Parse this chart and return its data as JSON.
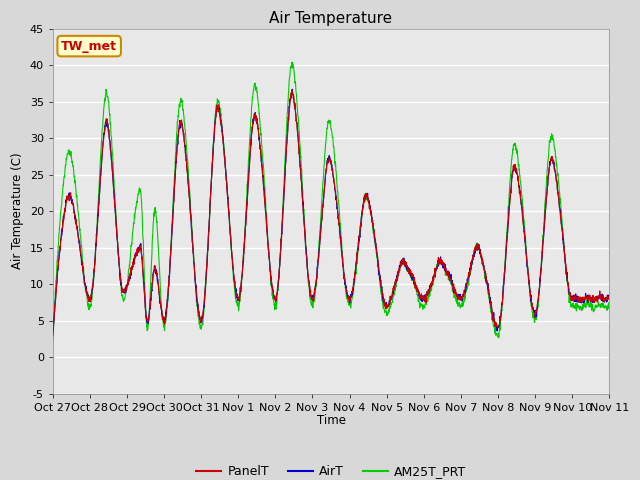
{
  "title": "Air Temperature",
  "ylabel": "Air Temperature (C)",
  "xlabel": "Time",
  "ylim": [
    -5,
    45
  ],
  "yticks": [
    -5,
    0,
    5,
    10,
    15,
    20,
    25,
    30,
    35,
    40,
    45
  ],
  "fig_bg_color": "#d8d8d8",
  "axes_bg_color": "#e8e8e8",
  "grid_color": "white",
  "line_colors": {
    "PanelT": "#cc0000",
    "AirT": "#0000cc",
    "AM25T_PRT": "#00cc00"
  },
  "annotation_label": "TW_met",
  "annotation_fc": "#ffffcc",
  "annotation_ec": "#cc8800",
  "annotation_tc": "#cc0000",
  "x_tick_labels": [
    "Oct 27",
    "Oct 28",
    "Oct 29",
    "Oct 30",
    "Oct 31",
    "Nov 1",
    "Nov 2",
    "Nov 3",
    "Nov 4",
    "Nov 5",
    "Nov 6",
    "Nov 7",
    "Nov 8",
    "Nov 9",
    "Nov 10",
    "Nov 11"
  ],
  "peak_days": [
    0.45,
    1.45,
    2.35,
    2.75,
    3.45,
    4.45,
    5.45,
    6.45,
    7.45,
    8.45,
    9.45,
    10.45,
    11.45,
    12.45,
    13.45
  ],
  "red_peaks": [
    22,
    32,
    15,
    12,
    32,
    34,
    33,
    36,
    27,
    22,
    13,
    13,
    15,
    26,
    27
  ],
  "green_peaks": [
    28,
    36,
    23,
    20,
    35,
    35,
    37,
    40,
    32,
    22,
    13,
    13,
    15,
    29,
    30
  ],
  "trough_days": [
    0.0,
    1.0,
    1.9,
    2.55,
    3.0,
    4.0,
    5.0,
    6.0,
    7.0,
    8.0,
    9.0,
    10.0,
    11.0,
    12.0,
    13.0,
    14.0,
    15.0
  ],
  "trough_vals": [
    3,
    8,
    9,
    5,
    5,
    5,
    8,
    8,
    8,
    8,
    7,
    8,
    8,
    4,
    6,
    8,
    8
  ]
}
